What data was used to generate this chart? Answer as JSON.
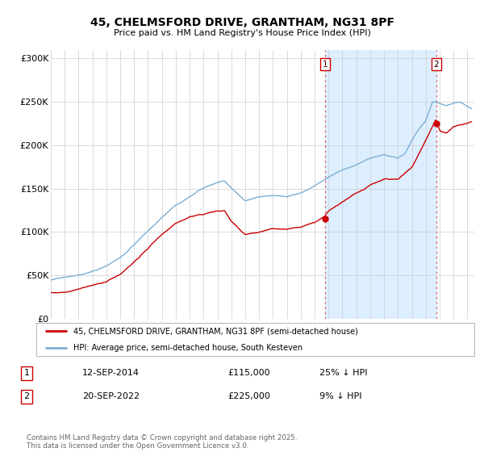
{
  "title": "45, CHELMSFORD DRIVE, GRANTHAM, NG31 8PF",
  "subtitle": "Price paid vs. HM Land Registry's House Price Index (HPI)",
  "ylabel_ticks": [
    "£0",
    "£50K",
    "£100K",
    "£150K",
    "£200K",
    "£250K",
    "£300K"
  ],
  "ytick_values": [
    0,
    50000,
    100000,
    150000,
    200000,
    250000,
    300000
  ],
  "ylim": [
    0,
    310000
  ],
  "hpi_color": "#7bafd4",
  "price_color": "#cc0000",
  "shade_color": "#ddeeff",
  "purchase1_year": 2014.75,
  "purchase1_price_val": 115000,
  "purchase2_year": 2022.75,
  "purchase2_price_val": 225000,
  "purchase1_date": "12-SEP-2014",
  "purchase1_price": "£115,000",
  "purchase1_pct": "25% ↓ HPI",
  "purchase2_date": "20-SEP-2022",
  "purchase2_price": "£225,000",
  "purchase2_pct": "9% ↓ HPI",
  "legend_label1": "45, CHELMSFORD DRIVE, GRANTHAM, NG31 8PF (semi-detached house)",
  "legend_label2": "HPI: Average price, semi-detached house, South Kesteven",
  "footer": "Contains HM Land Registry data © Crown copyright and database right 2025.\nThis data is licensed under the Open Government Licence v3.0.",
  "background_color": "#ffffff",
  "grid_color": "#cccccc",
  "xlim_start": 1995,
  "xlim_end": 2025.5
}
